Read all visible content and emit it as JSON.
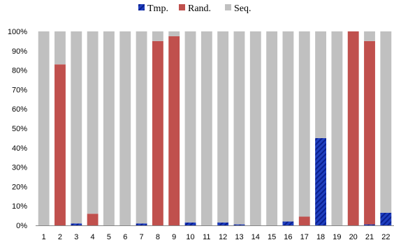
{
  "chart_data": {
    "type": "bar",
    "stacked": true,
    "normalized_percent": true,
    "categories": [
      "1",
      "2",
      "3",
      "4",
      "5",
      "6",
      "7",
      "8",
      "9",
      "10",
      "11",
      "12",
      "13",
      "14",
      "15",
      "16",
      "17",
      "18",
      "19",
      "20",
      "21",
      "22"
    ],
    "series": [
      {
        "name": "Tmp.",
        "color": "#1f3fbf",
        "pattern": "diagonal-stripes",
        "values": [
          0,
          0,
          1,
          0,
          0,
          0,
          1,
          0,
          0,
          1.5,
          0,
          1.5,
          0.5,
          0,
          0,
          2,
          0,
          45,
          0,
          0,
          0.5,
          6.5
        ]
      },
      {
        "name": "Rand.",
        "color": "#c0504d",
        "values": [
          0,
          83,
          0,
          6,
          0,
          0,
          0,
          95,
          97.5,
          0,
          0,
          0,
          0,
          0,
          0,
          0,
          4.5,
          0,
          0,
          100,
          94.5,
          0
        ]
      },
      {
        "name": "Seq.",
        "color": "#c0c0c0",
        "values": [
          100,
          17,
          99,
          94,
          100,
          100,
          99,
          5,
          2.5,
          98.5,
          100,
          98.5,
          99.5,
          100,
          100,
          98,
          95.5,
          55,
          100,
          0,
          5,
          93.5
        ]
      }
    ],
    "y_ticks": [
      "0%",
      "10%",
      "20%",
      "30%",
      "40%",
      "50%",
      "60%",
      "70%",
      "80%",
      "90%",
      "100%"
    ],
    "ylim": [
      0,
      100
    ],
    "legend_position": "top-center",
    "grid": false
  }
}
